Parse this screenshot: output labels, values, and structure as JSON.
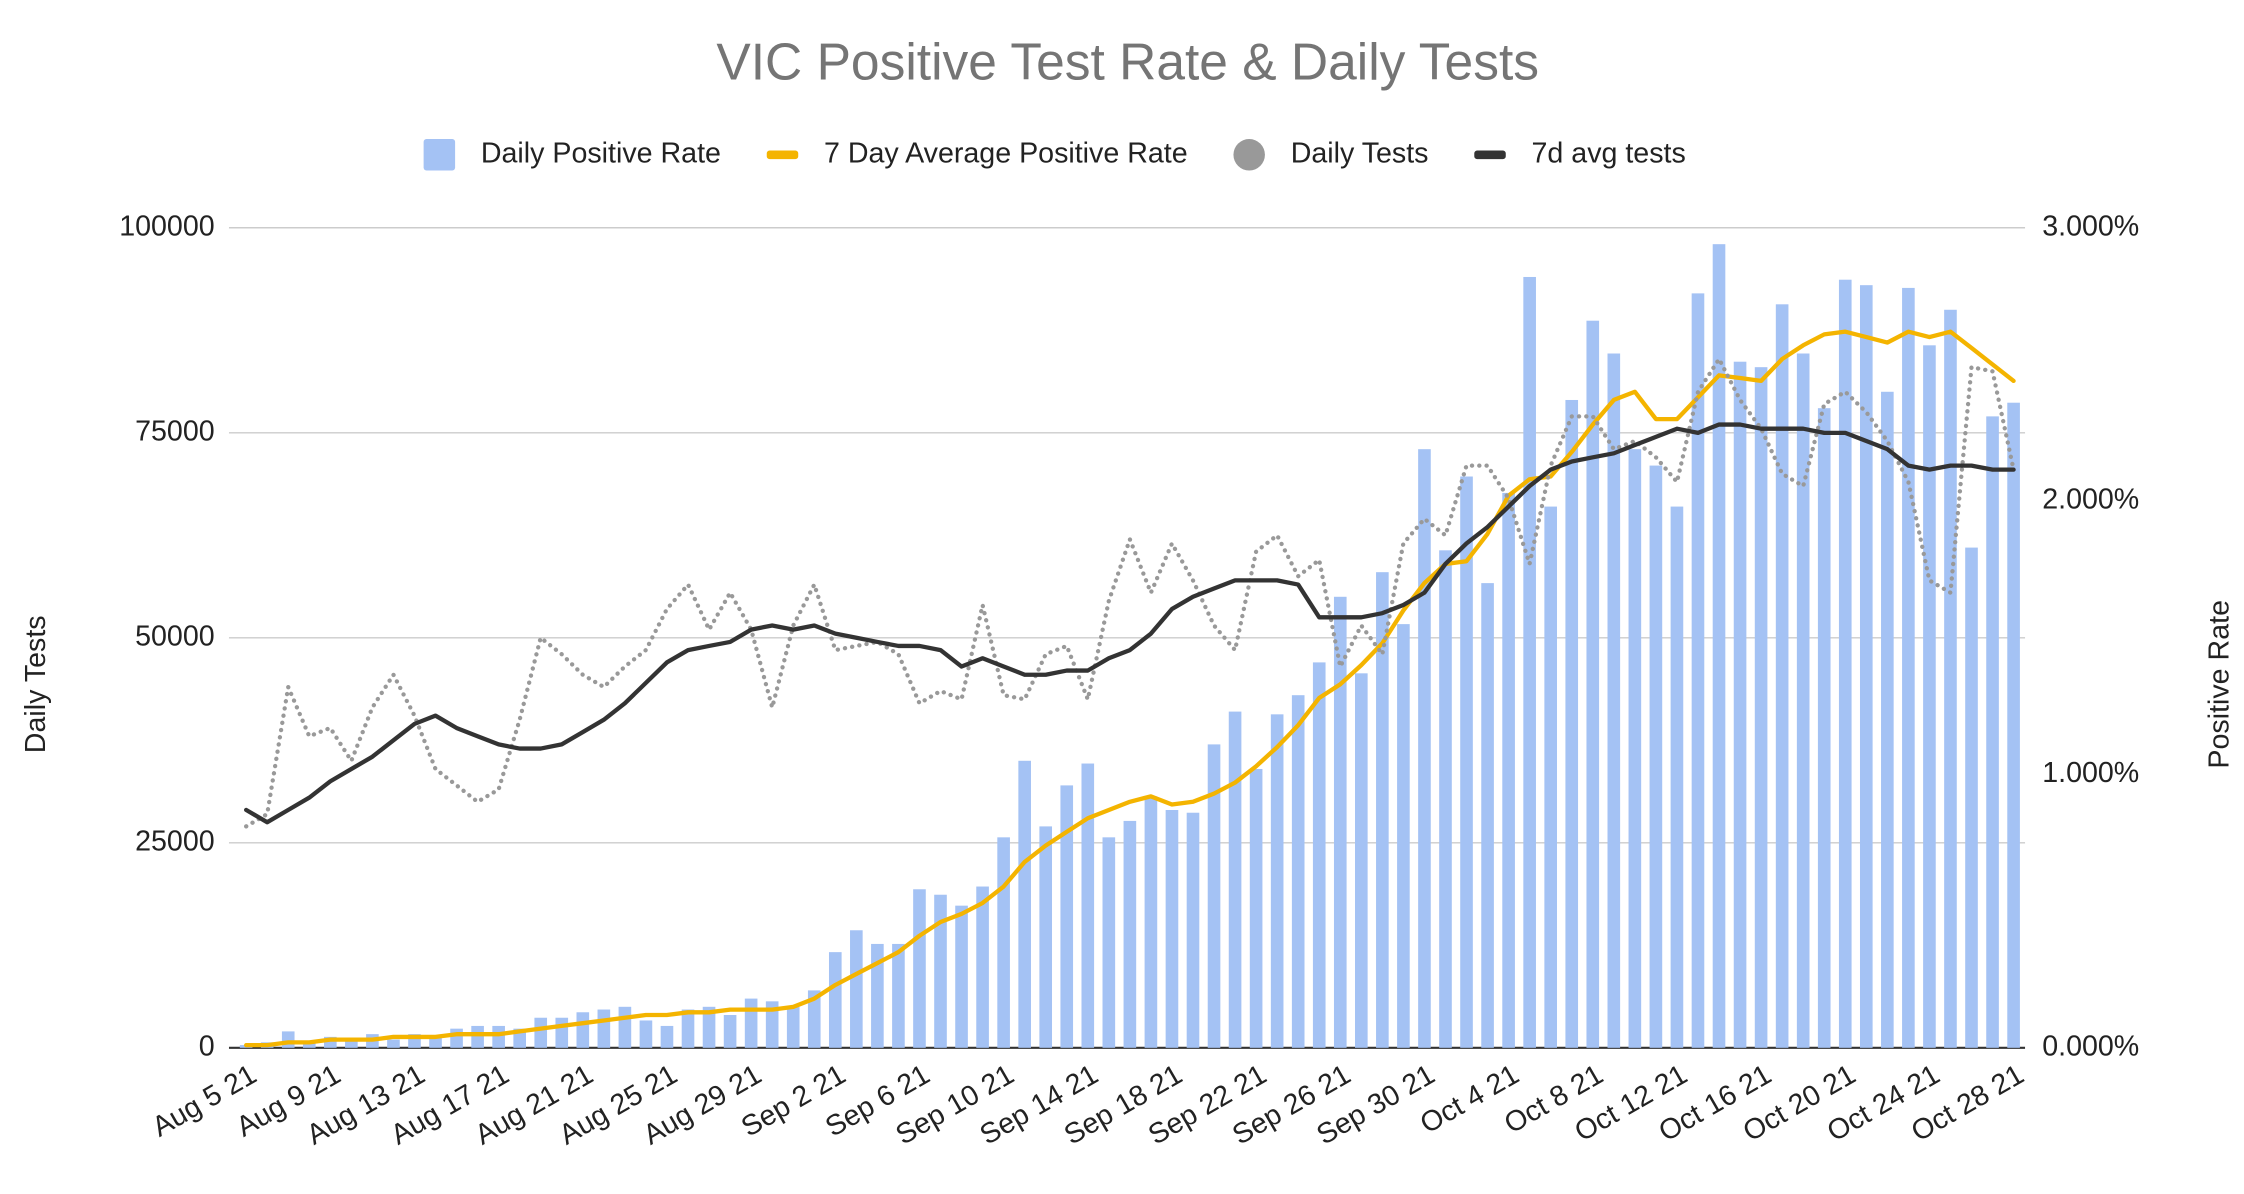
{
  "chart_data": {
    "type": "combo",
    "title": "VIC Positive Test Rate & Daily Tests",
    "y_label": "Daily Tests",
    "y2_label": "Positive Rate",
    "categories": [
      "Aug 5 21",
      null,
      null,
      null,
      "Aug 9 21",
      null,
      null,
      null,
      "Aug 13 21",
      null,
      null,
      null,
      "Aug 17 21",
      null,
      null,
      null,
      "Aug 21 21",
      null,
      null,
      null,
      "Aug 25 21",
      null,
      null,
      null,
      "Aug 29 21",
      null,
      null,
      null,
      "Sep 2 21",
      null,
      null,
      null,
      "Sep 6 21",
      null,
      null,
      null,
      "Sep 10 21",
      null,
      null,
      null,
      "Sep 14 21",
      null,
      null,
      null,
      "Sep 18 21",
      null,
      null,
      null,
      "Sep 22 21",
      null,
      null,
      null,
      "Sep 26 21",
      null,
      null,
      null,
      "Sep 30 21",
      null,
      null,
      null,
      "Oct 4 21",
      null,
      null,
      null,
      "Oct 8 21",
      null,
      null,
      null,
      "Oct 12 21",
      null,
      null,
      null,
      "Oct 16 21",
      null,
      null,
      null,
      "Oct 20 21",
      null,
      null,
      null,
      "Oct 24 21",
      null,
      null,
      null,
      "Oct 28 21"
    ],
    "ylim": [
      0,
      100000
    ],
    "yticks": [
      0,
      25000,
      50000,
      75000,
      100000
    ],
    "y2lim": [
      0,
      3
    ],
    "y2ticks": [
      {
        "value": 0,
        "label": "0.000%"
      },
      {
        "value": 1,
        "label": "1.000%"
      },
      {
        "value": 2,
        "label": "2.000%"
      },
      {
        "value": 3,
        "label": "3.000%"
      }
    ],
    "grid": true,
    "legend": "top",
    "series": [
      {
        "name": "Daily Positive Rate",
        "type": "bar",
        "axis": "y2",
        "color": "#a4c2f4",
        "values": [
          0.01,
          0.02,
          0.06,
          0.02,
          0.04,
          0.03,
          0.05,
          0.03,
          0.05,
          0.04,
          0.07,
          0.08,
          0.08,
          0.07,
          0.11,
          0.11,
          0.13,
          0.14,
          0.15,
          0.1,
          0.08,
          0.14,
          0.15,
          0.12,
          0.18,
          0.17,
          0.15,
          0.21,
          0.35,
          0.43,
          0.38,
          0.38,
          0.58,
          0.56,
          0.52,
          0.59,
          0.77,
          1.05,
          0.81,
          0.96,
          1.04,
          0.77,
          0.83,
          0.92,
          0.87,
          0.86,
          1.11,
          1.23,
          1.02,
          1.22,
          1.29,
          1.41,
          1.65,
          1.37,
          1.74,
          1.55,
          2.19,
          1.82,
          2.09,
          1.7,
          2.03,
          2.82,
          1.98,
          2.37,
          2.66,
          2.54,
          2.19,
          2.13,
          1.98,
          2.76,
          2.94,
          2.51,
          2.49,
          2.72,
          2.54,
          2.34,
          2.81,
          2.79,
          2.4,
          2.78,
          2.57,
          2.7,
          1.83,
          2.31,
          2.36
        ]
      },
      {
        "name": "7 Day Average Positive Rate",
        "type": "line",
        "axis": "y2",
        "color": "#f4b400",
        "values": [
          0.01,
          0.01,
          0.02,
          0.02,
          0.03,
          0.03,
          0.03,
          0.04,
          0.04,
          0.04,
          0.05,
          0.05,
          0.05,
          0.06,
          0.07,
          0.08,
          0.09,
          0.1,
          0.11,
          0.12,
          0.12,
          0.13,
          0.13,
          0.14,
          0.14,
          0.14,
          0.15,
          0.18,
          0.23,
          0.27,
          0.31,
          0.35,
          0.41,
          0.46,
          0.49,
          0.53,
          0.59,
          0.68,
          0.74,
          0.79,
          0.84,
          0.87,
          0.9,
          0.92,
          0.89,
          0.9,
          0.93,
          0.97,
          1.03,
          1.1,
          1.18,
          1.28,
          1.33,
          1.4,
          1.48,
          1.6,
          1.7,
          1.77,
          1.78,
          1.88,
          2.02,
          2.08,
          2.09,
          2.18,
          2.28,
          2.37,
          2.4,
          2.3,
          2.3,
          2.38,
          2.46,
          2.45,
          2.44,
          2.52,
          2.57,
          2.61,
          2.62,
          2.6,
          2.58,
          2.62,
          2.6,
          2.62,
          2.56,
          2.5,
          2.44
        ]
      },
      {
        "name": "Daily Tests",
        "type": "dotted",
        "color": "#999999",
        "values": [
          27000,
          28500,
          44000,
          38000,
          39000,
          35000,
          41500,
          45500,
          40500,
          34000,
          32000,
          30000,
          31500,
          40000,
          50000,
          48000,
          45500,
          44000,
          46500,
          48500,
          53500,
          56500,
          51000,
          55500,
          51000,
          41500,
          51500,
          56500,
          48500,
          49000,
          49500,
          48000,
          42000,
          43500,
          42500,
          54000,
          43000,
          42500,
          48000,
          49000,
          42500,
          54500,
          62000,
          55500,
          61500,
          57000,
          51500,
          48500,
          60500,
          62500,
          57500,
          59500,
          46500,
          51500,
          48000,
          61500,
          64500,
          62500,
          71000,
          71000,
          67000,
          59000,
          71000,
          77000,
          77000,
          73000,
          74000,
          72000,
          69000,
          80000,
          84000,
          79000,
          75500,
          70000,
          68500,
          78500,
          80000,
          77500,
          74000,
          69000,
          57000,
          55500,
          83000,
          82500,
          70500
        ]
      },
      {
        "name": "7d avg tests",
        "type": "line",
        "color": "#333333",
        "values": [
          29000,
          27500,
          29000,
          30500,
          32500,
          34000,
          35500,
          37500,
          39500,
          40500,
          39000,
          38000,
          37000,
          36500,
          36500,
          37000,
          38500,
          40000,
          42000,
          44500,
          47000,
          48500,
          49000,
          49500,
          51000,
          51500,
          51000,
          51500,
          50500,
          50000,
          49500,
          49000,
          49000,
          48500,
          46500,
          47500,
          46500,
          45500,
          45500,
          46000,
          46000,
          47500,
          48500,
          50500,
          53500,
          55000,
          56000,
          57000,
          57000,
          57000,
          56500,
          52500,
          52500,
          52500,
          53000,
          54000,
          55500,
          59000,
          61500,
          63500,
          66000,
          68500,
          70500,
          71500,
          72000,
          72500,
          73500,
          74500,
          75500,
          75000,
          76000,
          76000,
          75500,
          75500,
          75500,
          75000,
          75000,
          74000,
          73000,
          71000,
          70500,
          71000,
          71000,
          70500,
          70500
        ]
      }
    ]
  }
}
